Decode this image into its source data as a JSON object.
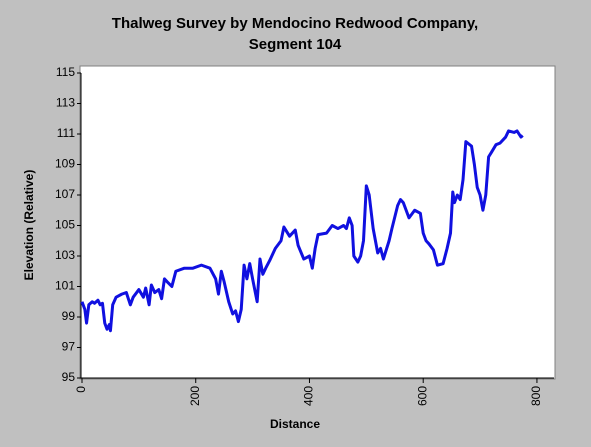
{
  "chart_data": {
    "type": "line",
    "title": [
      "Thalweg Survey by Mendocino Redwood Company,",
      "Segment 104"
    ],
    "x_label": "Distance",
    "y_label": "Elevation (Relative)",
    "xlim": [
      0,
      830
    ],
    "ylim": [
      95,
      115
    ],
    "xticks": [
      0,
      200,
      400,
      600,
      800
    ],
    "yticks": [
      95,
      97,
      99,
      101,
      103,
      105,
      107,
      109,
      111,
      113,
      115
    ],
    "series": [
      {
        "color": "#1010e0",
        "x": [
          0,
          5,
          8,
          12,
          18,
          22,
          28,
          32,
          36,
          40,
          44,
          48,
          50,
          54,
          60,
          70,
          78,
          85,
          90,
          100,
          108,
          112,
          118,
          122,
          128,
          135,
          140,
          145,
          150,
          158,
          165,
          180,
          195,
          210,
          225,
          235,
          240,
          245,
          250,
          258,
          265,
          270,
          275,
          280,
          285,
          290,
          295,
          300,
          308,
          313,
          318,
          323,
          330,
          340,
          350,
          355,
          365,
          375,
          380,
          390,
          400,
          405,
          410,
          415,
          430,
          440,
          450,
          460,
          465,
          470,
          475,
          478,
          485,
          490,
          495,
          500,
          505,
          512,
          520,
          525,
          530,
          540,
          545,
          555,
          560,
          565,
          575,
          585,
          595,
          600,
          605,
          610,
          618,
          625,
          635,
          642,
          648,
          652,
          655,
          660,
          665,
          670,
          675,
          685,
          690,
          695,
          700,
          705,
          710,
          715,
          720,
          728,
          735,
          745,
          750,
          760,
          765,
          772,
          775
        ],
        "values": [
          100,
          99.5,
          98.6,
          99.8,
          100,
          99.9,
          100.1,
          99.8,
          99.9,
          98.6,
          98.2,
          98.5,
          98.1,
          99.8,
          100.3,
          100.5,
          100.6,
          99.8,
          100.3,
          100.8,
          100.3,
          100.9,
          99.8,
          101.1,
          100.6,
          100.8,
          100.2,
          101.5,
          101.3,
          101,
          102,
          102.2,
          102.2,
          102.4,
          102.2,
          101.5,
          100.5,
          102,
          101.3,
          100,
          99.2,
          99.4,
          98.7,
          99.5,
          102.4,
          101.5,
          102.5,
          101.5,
          100,
          102.8,
          101.8,
          102.2,
          102.7,
          103.5,
          104,
          104.9,
          104.3,
          104.7,
          103.7,
          102.8,
          103,
          102.2,
          103.5,
          104.4,
          104.5,
          105,
          104.8,
          105,
          104.8,
          105.5,
          105,
          103,
          102.6,
          103,
          104,
          107.6,
          107,
          104.8,
          103.2,
          103.5,
          102.8,
          104,
          104.8,
          106.3,
          106.7,
          106.5,
          105.5,
          106,
          105.8,
          104.5,
          104,
          103.8,
          103.4,
          102.4,
          102.5,
          103.5,
          104.5,
          107.2,
          106.5,
          107,
          106.7,
          108,
          110.5,
          110.2,
          109,
          107.5,
          107,
          106,
          107,
          109.5,
          109.8,
          110.3,
          110.4,
          110.8,
          111.2,
          111.1,
          111.2,
          110.8,
          110.9
        ]
      }
    ]
  }
}
